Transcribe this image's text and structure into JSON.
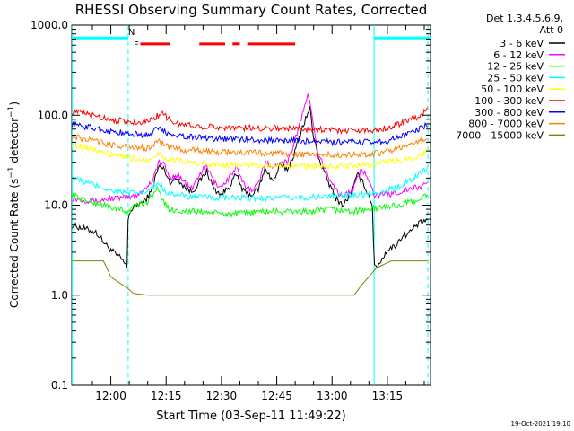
{
  "chart_data": {
    "type": "line",
    "title": "RHESSI Observing Summary Count Rates, Corrected",
    "xlabel": "Start Time (03-Sep-11 11:49:22)",
    "ylabel": "Corrected Count Rate (s⁻¹ detector⁻¹)",
    "ylabel_parts": [
      "Corrected Count Rate (s",
      "−1",
      " detector",
      "−1",
      ")"
    ],
    "yscale": "log",
    "ylim": [
      0.1,
      1000
    ],
    "xlim_minutes": [
      "11:49",
      "13:26"
    ],
    "xlim": [
      -10.6,
      86.7
    ],
    "x_ticks": [
      {
        "label": "12:00",
        "x": 0
      },
      {
        "label": "12:15",
        "x": 15
      },
      {
        "label": "12:30",
        "x": 30
      },
      {
        "label": "12:45",
        "x": 45
      },
      {
        "label": "13:00",
        "x": 60
      },
      {
        "label": "13:15",
        "x": 75
      }
    ],
    "y_ticks": [
      {
        "label": "0.1",
        "v": 0.1
      },
      {
        "label": "1.0",
        "v": 1
      },
      {
        "label": "10.0",
        "v": 10
      },
      {
        "label": "100.0",
        "v": 100
      },
      {
        "label": "1000.0",
        "v": 1000
      }
    ],
    "legend_header": [
      "Det 1,3,4,5,6,9,",
      "Att 0"
    ],
    "legend_position": "right",
    "series": [
      {
        "name": "3 - 6 keV",
        "color": "#000000",
        "points": [
          [
            -10.5,
            6
          ],
          [
            -4,
            5
          ],
          [
            -1,
            3.5
          ],
          [
            1.5,
            2.8
          ],
          [
            3,
            2.5
          ],
          [
            4.5,
            2.0
          ],
          [
            4.7,
            8
          ],
          [
            7,
            10
          ],
          [
            9,
            11
          ],
          [
            11,
            14
          ],
          [
            12,
            20
          ],
          [
            13,
            27
          ],
          [
            14.5,
            25
          ],
          [
            16,
            18
          ],
          [
            18,
            20
          ],
          [
            20,
            16
          ],
          [
            22,
            14
          ],
          [
            24,
            18
          ],
          [
            26,
            24
          ],
          [
            28,
            15
          ],
          [
            30,
            13
          ],
          [
            32,
            16
          ],
          [
            34,
            22
          ],
          [
            36,
            14
          ],
          [
            38,
            13
          ],
          [
            40,
            15
          ],
          [
            42,
            26
          ],
          [
            44,
            18
          ],
          [
            46,
            28
          ],
          [
            48,
            25
          ],
          [
            50,
            40
          ],
          [
            52,
            75
          ],
          [
            54,
            120
          ],
          [
            55,
            55
          ],
          [
            57,
            28
          ],
          [
            59,
            18
          ],
          [
            61,
            12
          ],
          [
            63,
            10
          ],
          [
            65,
            13
          ],
          [
            67,
            22
          ],
          [
            69,
            16
          ],
          [
            71,
            10
          ],
          [
            71.4,
            2.0
          ],
          [
            73,
            2.3
          ],
          [
            75,
            3.2
          ],
          [
            77,
            3.5
          ],
          [
            79,
            4.5
          ],
          [
            81,
            5
          ],
          [
            83,
            6
          ],
          [
            86,
            7
          ]
        ]
      },
      {
        "name": "6 - 12 keV",
        "color": "#ff00ff",
        "points": [
          [
            -10.5,
            12
          ],
          [
            -4,
            11
          ],
          [
            0,
            12
          ],
          [
            4.5,
            12
          ],
          [
            7,
            13
          ],
          [
            9,
            15
          ],
          [
            11,
            18
          ],
          [
            13,
            30
          ],
          [
            14.5,
            28
          ],
          [
            16,
            20
          ],
          [
            18,
            22
          ],
          [
            20,
            18
          ],
          [
            22,
            15
          ],
          [
            24,
            22
          ],
          [
            26,
            27
          ],
          [
            28,
            18
          ],
          [
            30,
            16
          ],
          [
            32,
            20
          ],
          [
            34,
            26
          ],
          [
            36,
            17
          ],
          [
            38,
            15
          ],
          [
            40,
            17
          ],
          [
            42,
            32
          ],
          [
            44,
            25
          ],
          [
            46,
            32
          ],
          [
            48,
            30
          ],
          [
            50,
            55
          ],
          [
            52,
            100
          ],
          [
            53.5,
            180
          ],
          [
            54.5,
            100
          ],
          [
            56,
            40
          ],
          [
            58,
            25
          ],
          [
            60,
            18
          ],
          [
            62,
            13
          ],
          [
            64,
            13
          ],
          [
            66,
            16
          ],
          [
            68,
            25
          ],
          [
            70,
            20
          ],
          [
            71.5,
            13
          ],
          [
            75,
            13
          ],
          [
            78,
            14
          ],
          [
            81,
            15
          ],
          [
            84,
            16
          ],
          [
            86,
            18
          ]
        ]
      },
      {
        "name": "12 - 25 keV",
        "color": "#00ff00",
        "points": [
          [
            -10.5,
            13
          ],
          [
            -6,
            11
          ],
          [
            -2,
            10
          ],
          [
            2,
            9
          ],
          [
            4.5,
            8.5
          ],
          [
            7,
            10
          ],
          [
            10,
            11
          ],
          [
            12,
            14
          ],
          [
            13,
            16
          ],
          [
            14,
            11
          ],
          [
            16,
            9
          ],
          [
            20,
            8.5
          ],
          [
            25,
            8.5
          ],
          [
            30,
            8
          ],
          [
            35,
            8
          ],
          [
            40,
            8.5
          ],
          [
            45,
            8.5
          ],
          [
            50,
            8.5
          ],
          [
            55,
            8.5
          ],
          [
            60,
            9
          ],
          [
            65,
            8.5
          ],
          [
            70,
            9
          ],
          [
            74,
            9.5
          ],
          [
            78,
            10
          ],
          [
            82,
            11
          ],
          [
            86,
            13
          ]
        ]
      },
      {
        "name": "25 - 50 keV",
        "color": "#00ffff",
        "points": [
          [
            -10.5,
            20
          ],
          [
            -5,
            17
          ],
          [
            0,
            14.5
          ],
          [
            5,
            13.5
          ],
          [
            10,
            14
          ],
          [
            13,
            18
          ],
          [
            15,
            14
          ],
          [
            20,
            12.5
          ],
          [
            30,
            12
          ],
          [
            40,
            12
          ],
          [
            50,
            12
          ],
          [
            60,
            12.5
          ],
          [
            70,
            13.5
          ],
          [
            74,
            14
          ],
          [
            78,
            16
          ],
          [
            82,
            20
          ],
          [
            86,
            26
          ]
        ]
      },
      {
        "name": "50 - 100 keV",
        "color": "#ffff00",
        "points": [
          [
            -10.5,
            48
          ],
          [
            -5,
            42
          ],
          [
            0,
            36
          ],
          [
            5,
            33
          ],
          [
            10,
            32
          ],
          [
            13,
            38
          ],
          [
            15,
            33
          ],
          [
            20,
            30
          ],
          [
            30,
            28
          ],
          [
            40,
            28
          ],
          [
            50,
            27
          ],
          [
            60,
            27
          ],
          [
            70,
            28
          ],
          [
            75,
            30
          ],
          [
            80,
            32
          ],
          [
            84,
            36
          ],
          [
            86,
            40
          ]
        ]
      },
      {
        "name": "100 - 300 keV",
        "color": "#ff0000",
        "points": [
          [
            -10.5,
            110
          ],
          [
            -5,
            100
          ],
          [
            0,
            90
          ],
          [
            5,
            84
          ],
          [
            10,
            85
          ],
          [
            13,
            100
          ],
          [
            14,
            110
          ],
          [
            15,
            95
          ],
          [
            18,
            80
          ],
          [
            25,
            75
          ],
          [
            35,
            72
          ],
          [
            45,
            72
          ],
          [
            55,
            70
          ],
          [
            62,
            68
          ],
          [
            70,
            68
          ],
          [
            75,
            72
          ],
          [
            80,
            85
          ],
          [
            84,
            100
          ],
          [
            86,
            115
          ]
        ]
      },
      {
        "name": "300 - 800 keV",
        "color": "#0000ff",
        "points": [
          [
            -10.5,
            80
          ],
          [
            -5,
            72
          ],
          [
            0,
            66
          ],
          [
            5,
            62
          ],
          [
            10,
            60
          ],
          [
            13,
            72
          ],
          [
            15,
            64
          ],
          [
            20,
            58
          ],
          [
            30,
            55
          ],
          [
            40,
            53
          ],
          [
            50,
            52
          ],
          [
            60,
            50
          ],
          [
            70,
            50
          ],
          [
            75,
            52
          ],
          [
            80,
            60
          ],
          [
            84,
            72
          ],
          [
            86,
            80
          ]
        ]
      },
      {
        "name": "800 - 7000 keV",
        "color": "#ff8000",
        "points": [
          [
            -10.5,
            58
          ],
          [
            -5,
            52
          ],
          [
            0,
            47
          ],
          [
            5,
            44
          ],
          [
            10,
            43
          ],
          [
            13,
            52
          ],
          [
            15,
            45
          ],
          [
            20,
            41
          ],
          [
            30,
            39
          ],
          [
            40,
            38
          ],
          [
            50,
            37
          ],
          [
            60,
            36
          ],
          [
            70,
            37
          ],
          [
            75,
            39
          ],
          [
            80,
            44
          ],
          [
            84,
            52
          ],
          [
            86,
            58
          ]
        ]
      },
      {
        "name": "7000 - 15000 keV",
        "color": "#808000",
        "points": [
          [
            -10.5,
            2.4
          ],
          [
            -6,
            2.4
          ],
          [
            -2,
            2.4
          ],
          [
            0,
            1.6
          ],
          [
            2,
            1.4
          ],
          [
            4.5,
            1.2
          ],
          [
            6,
            1.05
          ],
          [
            10,
            1.0
          ],
          [
            20,
            1.0
          ],
          [
            30,
            1.0
          ],
          [
            40,
            1.0
          ],
          [
            50,
            1.0
          ],
          [
            60,
            1.0
          ],
          [
            66,
            1.0
          ],
          [
            68,
            1.3
          ],
          [
            70,
            1.6
          ],
          [
            72,
            2.0
          ],
          [
            76,
            2.4
          ],
          [
            80,
            2.4
          ],
          [
            86,
            2.4
          ]
        ]
      }
    ],
    "annotations": [
      {
        "label": "N",
        "color": "#00cccc",
        "x": 5.6,
        "v": 850
      },
      {
        "label": "F",
        "color": "#ff0000",
        "x": 6.9,
        "v": 620
      }
    ],
    "flags": [
      {
        "name": "night",
        "color": "#00ffff",
        "v": 720,
        "ranges": [
          [
            -10.6,
            4.7
          ],
          [
            71.4,
            86.7
          ]
        ]
      },
      {
        "name": "flare",
        "color": "#ff0000",
        "v": 620,
        "ranges": [
          [
            8,
            16
          ],
          [
            24,
            31
          ],
          [
            33,
            35
          ],
          [
            37,
            50
          ]
        ]
      }
    ],
    "vlines": [
      {
        "x": -10.5,
        "style": "solid",
        "color": "#00ffff"
      },
      {
        "x": 4.7,
        "style": "dashed",
        "color": "#00ffff"
      },
      {
        "x": 71.4,
        "style": "solid",
        "color": "#00ffff"
      },
      {
        "x": 86.0,
        "style": "dashed",
        "color": "#00ffff"
      }
    ],
    "grid": false,
    "footer": "19-Oct-2021 19:10"
  }
}
